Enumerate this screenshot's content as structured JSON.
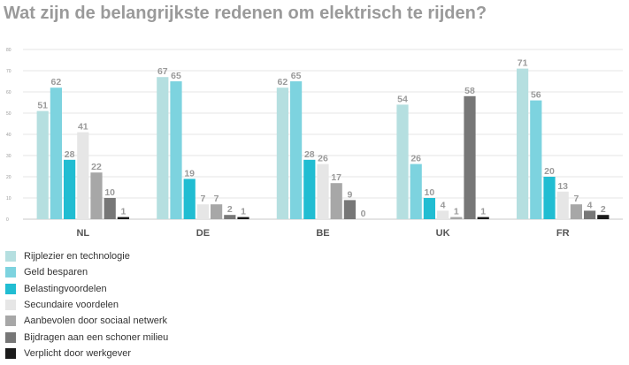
{
  "chart_data": {
    "type": "bar",
    "title": "Wat zijn de belangrijkste redenen om elektrisch te rijden?",
    "xlabel": "",
    "ylabel": "",
    "ylim": [
      0,
      80
    ],
    "yticks": [
      0,
      10,
      20,
      30,
      40,
      50,
      60,
      70,
      80
    ],
    "grid": true,
    "legend_position": "bottom-left",
    "categories": [
      "NL",
      "DE",
      "BE",
      "UK",
      "FR"
    ],
    "series": [
      {
        "name": "Rijplezier en technologie",
        "color": "#b5dfe0",
        "values": [
          51,
          67,
          62,
          54,
          71
        ]
      },
      {
        "name": "Geld besparen",
        "color": "#7dd3df",
        "values": [
          62,
          65,
          65,
          26,
          56
        ]
      },
      {
        "name": "Belastingvoordelen",
        "color": "#21bdd2",
        "values": [
          28,
          19,
          28,
          10,
          20
        ]
      },
      {
        "name": "Secundaire voordelen",
        "color": "#e6e6e6",
        "values": [
          41,
          7,
          26,
          4,
          13
        ]
      },
      {
        "name": "Aanbevolen door sociaal netwerk",
        "color": "#a7a7a7",
        "values": [
          22,
          7,
          17,
          1,
          7
        ]
      },
      {
        "name": "Bijdragen aan een schoner milieu",
        "color": "#777777",
        "values": [
          10,
          2,
          9,
          58,
          4
        ]
      },
      {
        "name": "Verplicht door werkgever",
        "color": "#1a1a1a",
        "values": [
          1,
          1,
          0,
          1,
          2
        ]
      }
    ]
  },
  "colors": {
    "title": "#9a9a9a",
    "label": "#9a9a9a",
    "grid": "#e4e4e4",
    "axis": "#c8c8c8",
    "category": "#555555"
  }
}
